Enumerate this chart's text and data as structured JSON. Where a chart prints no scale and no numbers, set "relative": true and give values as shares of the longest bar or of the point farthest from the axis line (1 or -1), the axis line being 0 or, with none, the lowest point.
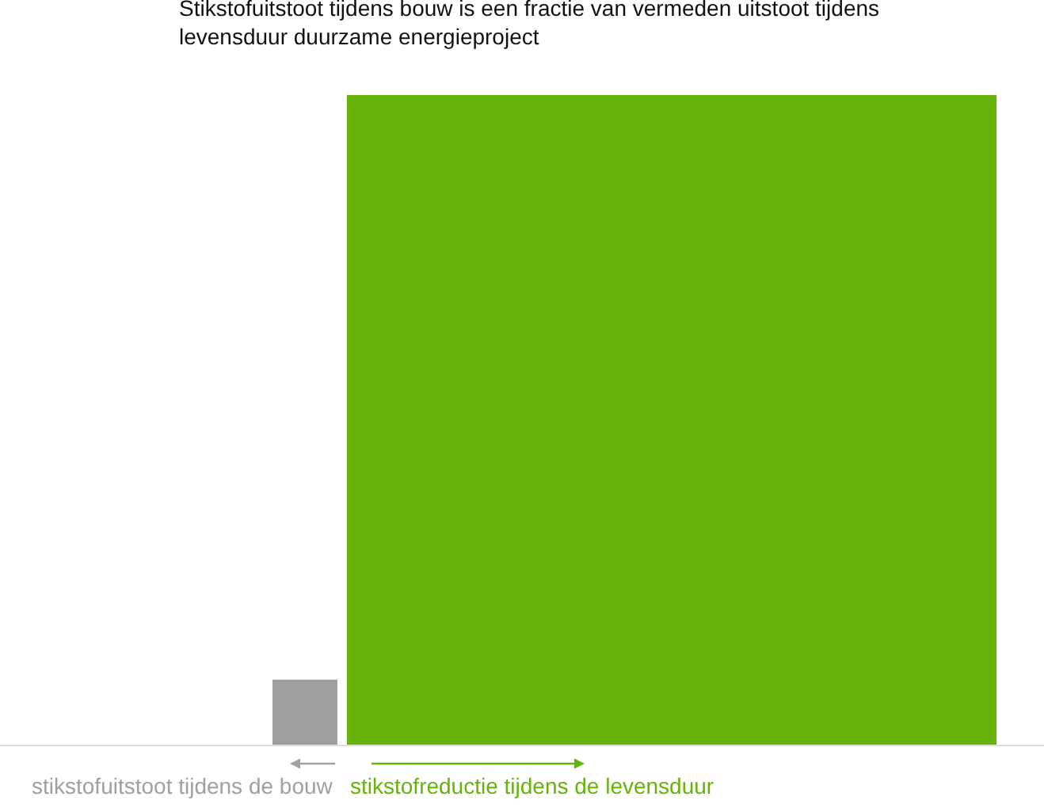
{
  "chart_data": {
    "type": "bar",
    "relative": true,
    "title": "Stikstofuitstoot tijdens bouw is een fractie van vermeden uitstoot tijdens levensduur duurzame energieproject",
    "categories": [
      "stikstofuitstoot tijdens de bouw",
      "stikstofreductie tijdens de levensduur"
    ],
    "values": [
      0.1,
      1
    ],
    "colors": [
      "#a0a0a0",
      "#66b30b"
    ]
  }
}
